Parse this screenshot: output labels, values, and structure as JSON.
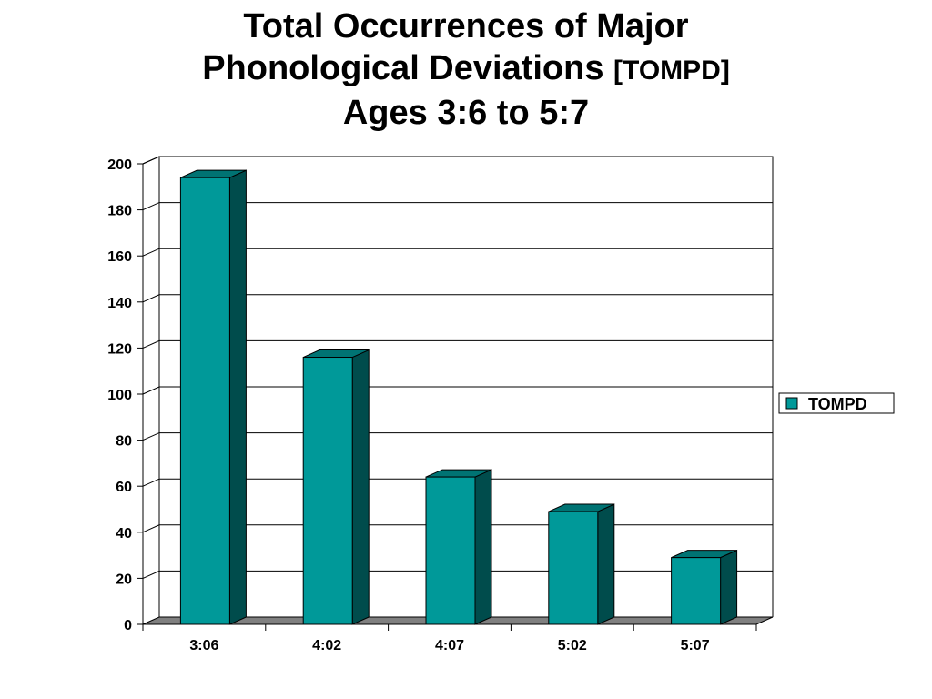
{
  "title": {
    "line1": "Total Occurrences of Major",
    "line2_main": "Phonological Deviations",
    "line2_small": "[TOMPD]",
    "line3": "Ages 3:6 to 5:7"
  },
  "chart_data": {
    "type": "bar",
    "style": "3d-column",
    "categories": [
      "3:06",
      "4:02",
      "4:07",
      "5:02",
      "5:07"
    ],
    "series": [
      {
        "name": "TOMPD",
        "values": [
          194,
          116,
          64,
          49,
          29
        ]
      }
    ],
    "ylim": [
      0,
      200
    ],
    "yticks": [
      0,
      20,
      40,
      60,
      80,
      100,
      120,
      140,
      160,
      180,
      200
    ],
    "grid": true,
    "legend": "right",
    "colors": {
      "bar_front": "#009999",
      "bar_side": "#004c4c",
      "bar_top": "#007373",
      "floor": "#808080"
    }
  }
}
